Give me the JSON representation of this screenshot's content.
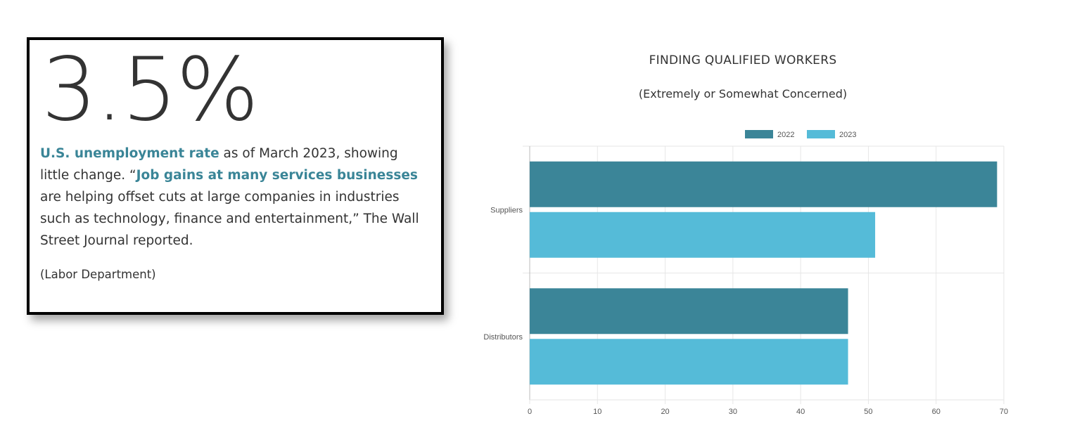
{
  "stat": {
    "value": "3.5%",
    "segments": [
      {
        "text": "U.S. unemployment rate",
        "highlight": true
      },
      {
        "text": " as of March 2023, showing little change. “",
        "highlight": false
      },
      {
        "text": "Job gains at many services businesses",
        "highlight": true
      },
      {
        "text": " are helping offset cuts at large companies in industries such as technology, finance and entertainment,” The Wall Street Journal reported.",
        "highlight": false
      }
    ],
    "source": "(Labor Department)",
    "highlight_color": "#3a8597"
  },
  "chart_data": {
    "type": "bar",
    "orientation": "horizontal",
    "title": "FINDING QUALIFIED WORKERS",
    "subtitle": "(Extremely or Somewhat Concerned)",
    "categories": [
      "Suppliers",
      "Distributors"
    ],
    "series": [
      {
        "name": "2022",
        "values": [
          69,
          47
        ],
        "color": "#3b8598"
      },
      {
        "name": "2023",
        "values": [
          51,
          47
        ],
        "color": "#55bbd8"
      }
    ],
    "xlim": [
      0,
      70
    ],
    "xticks": [
      0,
      10,
      20,
      30,
      40,
      50,
      60,
      70
    ],
    "xlabel": "",
    "ylabel": "",
    "grid": true,
    "legend_position": "top"
  }
}
